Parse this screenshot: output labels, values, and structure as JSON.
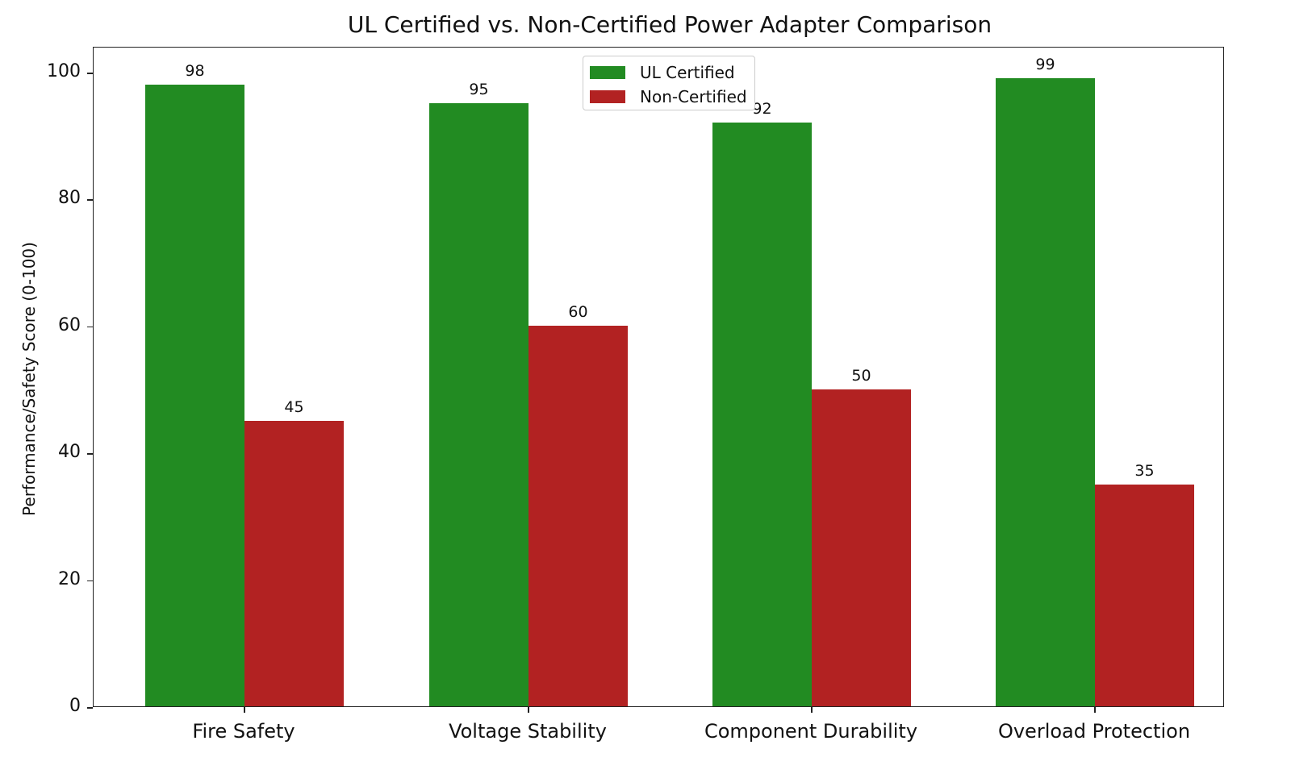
{
  "chart_data": {
    "type": "bar",
    "title": "UL Certified vs. Non-Certified Power Adapter Comparison",
    "xlabel": "",
    "ylabel": "Performance/Safety Score (0-100)",
    "ylim": [
      0,
      104
    ],
    "yticks": [
      "0",
      "20",
      "40",
      "60",
      "80",
      "100"
    ],
    "categories": [
      "Fire Safety",
      "Voltage Stability",
      "Component Durability",
      "Overload Protection"
    ],
    "series": [
      {
        "name": "UL Certified",
        "color": "#228b22",
        "values": [
          98,
          95,
          92,
          99
        ]
      },
      {
        "name": "Non-Certified",
        "color": "#b22222",
        "values": [
          45,
          60,
          50,
          35
        ]
      }
    ],
    "legend_position": "upper center",
    "grid": false
  }
}
